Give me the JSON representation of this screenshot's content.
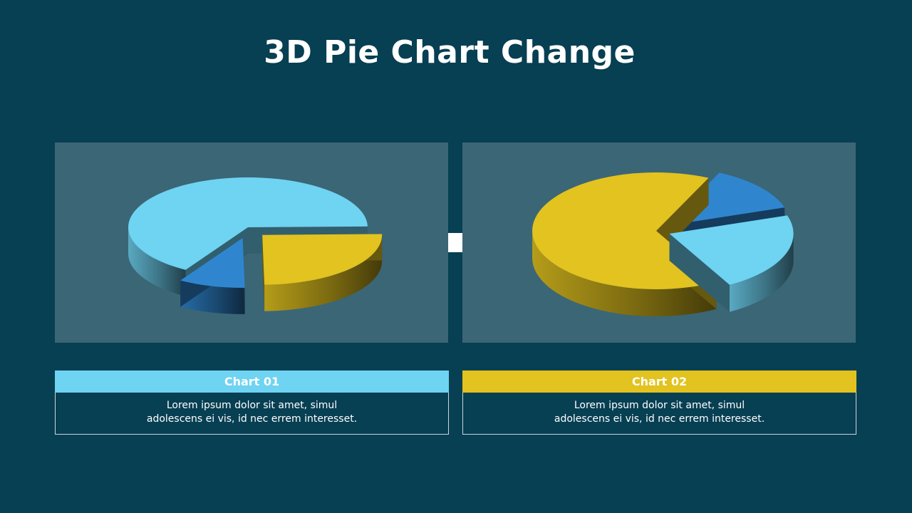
{
  "title": "3D Pie Chart Change",
  "chart_data": [
    {
      "type": "pie",
      "title": "",
      "slices": [
        {
          "value": 66,
          "color": "#6fd3f2"
        },
        {
          "value": 25,
          "color": "#e2c31f"
        },
        {
          "value": 9,
          "color": "#2f86cf"
        }
      ]
    },
    {
      "type": "pie",
      "title": "",
      "slices": [
        {
          "value": 22,
          "color": "#6fd3f2"
        },
        {
          "value": 65,
          "color": "#e2c31f"
        },
        {
          "value": 13,
          "color": "#2f86cf"
        }
      ]
    }
  ],
  "captions": [
    {
      "label": "Chart 01",
      "color": "#6fd3f2",
      "line1": "Lorem  ipsum dolor  sit amet,  simul",
      "line2": "adolescens ei vis, id nec errem  interesset."
    },
    {
      "label": "Chart 02",
      "color": "#e2c31f",
      "line1": "Lorem  ipsum dolor  sit amet,  simul",
      "line2": "adolescens ei vis, id nec errem  interesset."
    }
  ],
  "arrow_icon": "right-arrow-icon"
}
